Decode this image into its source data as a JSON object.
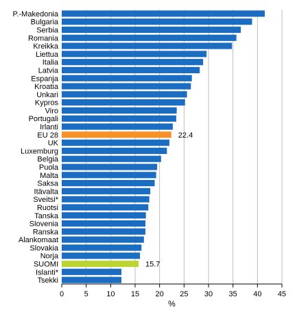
{
  "chart_data": {
    "type": "bar",
    "orientation": "horizontal",
    "categories": [
      "P.-Makedonia",
      "Bulgaria",
      "Serbia",
      "Romania",
      "Kreikka",
      "Liettua",
      "Italia",
      "Latvia",
      "Espanja",
      "Kroatia",
      "Unkari",
      "Kypros",
      "Viro",
      "Portugali",
      "Irlanti",
      "EU 28",
      "UK",
      "Luxemburg",
      "Belgia",
      "Puola",
      "Malta",
      "Saksa",
      "Itävalta",
      "Sveitsi*",
      "Ruotsi",
      "Tanska",
      "Slovenia",
      "Ranska",
      "Alankomaat",
      "Slovakia",
      "Norja",
      "SUOMI",
      "Islanti*",
      "Tsekki"
    ],
    "values": [
      41.5,
      38.9,
      36.6,
      35.7,
      34.8,
      29.6,
      28.9,
      28.2,
      26.6,
      26.4,
      25.6,
      25.2,
      23.5,
      23.4,
      22.7,
      22.4,
      22.0,
      21.5,
      20.3,
      19.5,
      19.3,
      19.0,
      18.1,
      17.9,
      17.7,
      17.2,
      17.1,
      17.1,
      16.8,
      16.3,
      16.0,
      15.7,
      12.2,
      12.2
    ],
    "highlight": {
      "EU 28": "#f7922b",
      "SUOMI": "#bad531"
    },
    "data_labels": [
      {
        "category": "EU 28",
        "text": "22.4"
      },
      {
        "category": "SUOMI",
        "text": "15.7"
      }
    ],
    "bar_color": "#1b6dc1",
    "xlim": [
      0,
      45
    ],
    "xticks": [
      "0",
      "5",
      "10",
      "15",
      "20",
      "25",
      "30",
      "35",
      "40",
      "45"
    ],
    "xlabel": "%",
    "title": "",
    "grid": true
  }
}
